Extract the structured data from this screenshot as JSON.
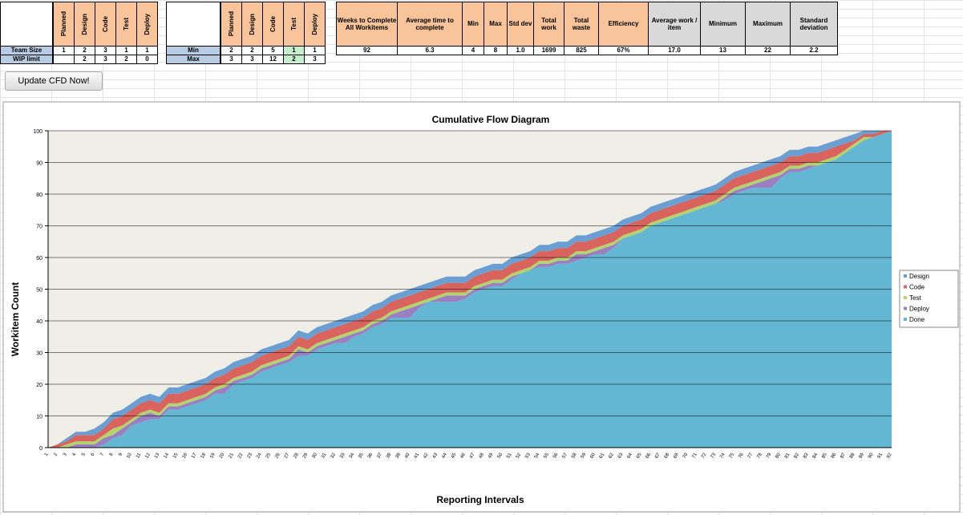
{
  "sheet": {
    "table1": {
      "header": [
        "Planned",
        "Design",
        "Code",
        "Test",
        "Deploy"
      ],
      "rows": [
        [
          "Team Size",
          "1",
          "2",
          "3",
          "1",
          "1"
        ],
        [
          "WIP limit",
          null,
          "2",
          "3",
          "2",
          "0"
        ]
      ]
    },
    "table2": {
      "header": [
        "Planned",
        "Design",
        "Code",
        "Test",
        "Deploy"
      ],
      "rows": [
        [
          "Min",
          "2",
          "2",
          "5",
          "1",
          "1"
        ],
        [
          "Max",
          "3",
          "3",
          "12",
          "2",
          "3"
        ]
      ]
    },
    "table3": {
      "header": [
        "Weeks to Complete All Workitems",
        "Average time to complete",
        "Min",
        "Max",
        "Std dev",
        "Total work",
        "Total waste",
        "Efficiency",
        "Average work / item",
        "Minimum",
        "Maximum",
        "Standard deviation"
      ],
      "row": [
        "92",
        "6.3",
        "4",
        "8",
        "1.0",
        "1699",
        "825",
        "67%",
        "17.0",
        "13",
        "22",
        "2.2"
      ]
    },
    "button": "Update CFD Now!"
  },
  "chart_data": {
    "type": "area",
    "stacked": true,
    "title": "Cumulative Flow Diagram",
    "x_label": "Reporting Intervals",
    "y_label": "Workitem Count",
    "categories": [
      "1",
      "2",
      "3",
      "4",
      "5",
      "6",
      "7",
      "8",
      "9",
      "10",
      "11",
      "12",
      "13",
      "14",
      "15",
      "16",
      "17",
      "18",
      "19",
      "20",
      "21",
      "22",
      "23",
      "24",
      "25",
      "26",
      "27",
      "28",
      "29",
      "30",
      "31",
      "32",
      "33",
      "34",
      "35",
      "36",
      "37",
      "38",
      "39",
      "40",
      "41",
      "42",
      "43",
      "44",
      "45",
      "46",
      "47",
      "48",
      "49",
      "50",
      "51",
      "52",
      "53",
      "54",
      "55",
      "56",
      "57",
      "58",
      "59",
      "60",
      "61",
      "62",
      "63",
      "64",
      "65",
      "66",
      "67",
      "68",
      "69",
      "70",
      "71",
      "72",
      "73",
      "74",
      "75",
      "76",
      "77",
      "78",
      "79",
      "80",
      "81",
      "82",
      "83",
      "84",
      "85",
      "86",
      "87",
      "88",
      "89",
      "90",
      "91",
      "92"
    ],
    "ylim": [
      0,
      100
    ],
    "yticks": [
      0,
      10,
      20,
      30,
      40,
      50,
      60,
      70,
      80,
      90,
      100
    ],
    "grid": true,
    "legend": "right",
    "series": [
      {
        "name": "Design",
        "color": "#6a9fd4",
        "values": [
          0,
          0,
          1,
          1,
          1,
          2,
          2,
          2,
          2,
          2,
          2,
          2,
          2,
          2,
          2,
          2,
          2,
          2,
          2,
          2,
          2,
          2,
          2,
          2,
          2,
          2,
          2,
          2,
          2,
          2,
          2,
          2,
          2,
          2,
          2,
          2,
          2,
          2,
          2,
          2,
          2,
          2,
          2,
          2,
          2,
          2,
          2,
          2,
          2,
          2,
          2,
          2,
          2,
          2,
          2,
          2,
          2,
          2,
          2,
          2,
          2,
          2,
          2,
          2,
          2,
          2,
          2,
          2,
          2,
          2,
          2,
          2,
          2,
          2,
          2,
          2,
          2,
          2,
          2,
          2,
          2,
          2,
          2,
          2,
          2,
          2,
          2,
          2,
          1,
          1,
          0,
          0
        ]
      },
      {
        "name": "Code",
        "color": "#d9645e",
        "values": [
          0,
          1,
          1,
          2,
          2,
          2,
          2,
          3,
          3,
          3,
          3,
          3,
          3,
          3,
          3,
          3,
          3,
          3,
          3,
          3,
          3,
          3,
          3,
          3,
          3,
          3,
          3,
          3,
          3,
          3,
          3,
          3,
          3,
          3,
          3,
          3,
          3,
          3,
          3,
          3,
          3,
          3,
          3,
          3,
          3,
          3,
          3,
          3,
          3,
          3,
          3,
          3,
          3,
          3,
          3,
          3,
          3,
          3,
          3,
          3,
          3,
          3,
          3,
          3,
          3,
          3,
          3,
          3,
          3,
          3,
          3,
          3,
          3,
          3,
          3,
          3,
          3,
          3,
          3,
          3,
          3,
          3,
          3,
          3,
          3,
          3,
          2,
          1,
          1,
          1,
          1,
          0
        ]
      },
      {
        "name": "Test",
        "color": "#b3d36f",
        "values": [
          0,
          0,
          1,
          1,
          1,
          1,
          1,
          2,
          1,
          1,
          1,
          1,
          1,
          1,
          1,
          1,
          1,
          1,
          1,
          1,
          1,
          1,
          1,
          1,
          1,
          1,
          1,
          1,
          1,
          1,
          1,
          1,
          1,
          1,
          1,
          1,
          1,
          1,
          1,
          1,
          1,
          1,
          1,
          1,
          1,
          1,
          1,
          1,
          1,
          1,
          1,
          1,
          1,
          1,
          1,
          1,
          1,
          1,
          1,
          1,
          1,
          1,
          1,
          1,
          1,
          1,
          1,
          1,
          1,
          1,
          1,
          1,
          1,
          1,
          1,
          1,
          1,
          1,
          1,
          1,
          1,
          1,
          1,
          1,
          1,
          1,
          1,
          1,
          1,
          0,
          0,
          0
        ]
      },
      {
        "name": "Deploy",
        "color": "#9a80c2",
        "values": [
          0,
          0,
          0,
          1,
          1,
          1,
          2,
          1,
          2,
          1,
          2,
          2,
          1,
          1,
          1,
          1,
          1,
          1,
          1,
          2,
          1,
          1,
          1,
          1,
          1,
          1,
          1,
          2,
          1,
          1,
          1,
          1,
          2,
          1,
          1,
          1,
          1,
          1,
          2,
          3,
          1,
          0,
          1,
          2,
          2,
          1,
          1,
          1,
          1,
          1,
          1,
          0,
          0,
          1,
          1,
          1,
          1,
          2,
          1,
          1,
          2,
          1,
          0,
          0,
          0,
          0,
          0,
          0,
          0,
          0,
          0,
          0,
          0,
          1,
          1,
          1,
          1,
          2,
          3,
          1,
          1,
          1,
          1,
          0,
          0,
          0,
          0,
          0,
          0,
          0,
          0,
          0
        ]
      },
      {
        "name": "Done",
        "color": "#64b7d3",
        "values": [
          0,
          0,
          0,
          0,
          0,
          0,
          1,
          3,
          4,
          7,
          8,
          9,
          9,
          12,
          12,
          13,
          14,
          15,
          17,
          17,
          20,
          21,
          22,
          24,
          25,
          26,
          27,
          29,
          29,
          31,
          32,
          33,
          33,
          35,
          36,
          38,
          39,
          41,
          41,
          41,
          44,
          46,
          46,
          46,
          46,
          47,
          49,
          50,
          51,
          51,
          53,
          55,
          56,
          57,
          57,
          58,
          58,
          59,
          60,
          61,
          61,
          63,
          66,
          67,
          68,
          70,
          71,
          72,
          73,
          74,
          75,
          76,
          77,
          78,
          80,
          81,
          82,
          82,
          82,
          85,
          87,
          87,
          88,
          89,
          90,
          91,
          93,
          95,
          97,
          98,
          99,
          100
        ]
      }
    ]
  }
}
